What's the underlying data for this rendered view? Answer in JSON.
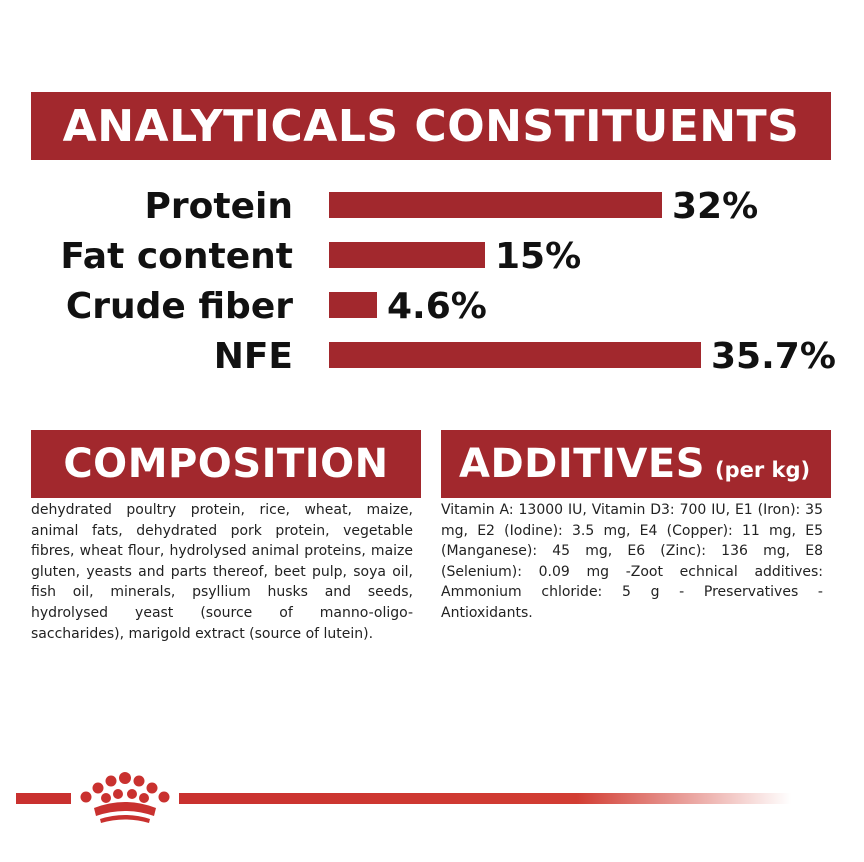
{
  "header": {
    "title": "ANALYTICALS CONSTITUENTS"
  },
  "chart_data": {
    "type": "bar",
    "orientation": "horizontal",
    "categories": [
      "Protein",
      "Fat content",
      "Crude fiber",
      "NFE"
    ],
    "values": [
      32,
      15,
      4.6,
      35.7
    ],
    "value_labels": [
      "32%",
      "15%",
      "4.6%",
      "35.7%"
    ],
    "bar_color": "#a2282d"
  },
  "composition": {
    "title": "COMPOSITION",
    "text": "dehydrated poultry protein, rice, wheat, maize, animal fats, dehydrated pork protein, vegetable fibres, wheat flour, hydrolysed animal proteins, maize gluten, yeasts and parts thereof, beet pulp, soya oil, fish oil, minerals, psyllium husks and seeds, hydrolysed yeast (source of manno-oligo-saccharides), marigold extract (source of lutein)."
  },
  "additives": {
    "title": "ADDITIVES",
    "subtitle": "(per kg)",
    "text": "Vitamin A: 13000 IU, Vitamin D3: 700 IU, E1 (Iron): 35 mg, E2 (Iodine): 3.5 mg, E4 (Copper): 11 mg, E5 (Manganese): 45 mg, E6 (Zinc): 136 mg, E8 (Selenium): 0.09 mg -Zoot echnical additives: Ammonium chloride: 5 g - Preservatives - Antioxidants."
  },
  "colors": {
    "brand_red": "#a2282d",
    "footer_red": "#c9312f"
  },
  "footer": {
    "logo_icon": "crown-icon"
  }
}
